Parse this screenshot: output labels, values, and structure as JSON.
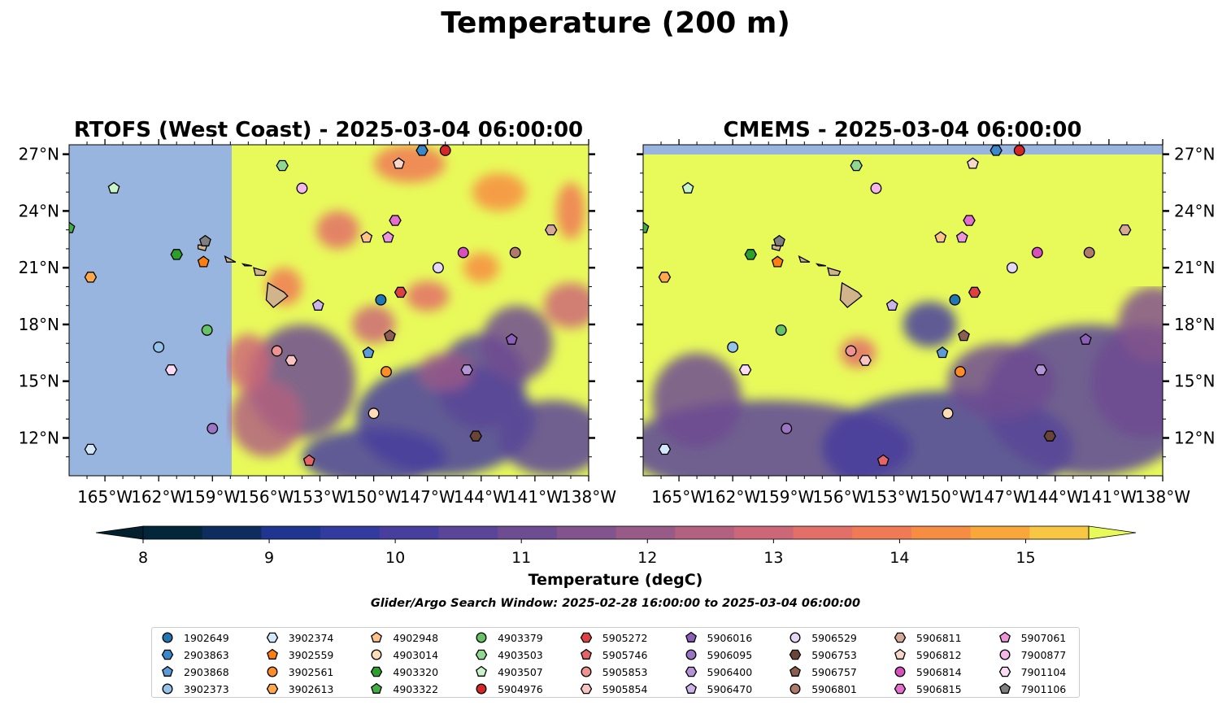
{
  "suptitle": "Temperature (200 m)",
  "chart_data": [
    {
      "type": "contour map",
      "title": "RTOFS (West Coast) - 2025-03-04 06:00:00",
      "xlim": [
        -167,
        -138
      ],
      "ylim": [
        10,
        27.5
      ],
      "xticks": [
        "165°W",
        "162°W",
        "159°W",
        "156°W",
        "153°W",
        "150°W",
        "147°W",
        "144°W",
        "141°W",
        "138°W"
      ],
      "yticks": [
        "27°N",
        "24°N",
        "21°N",
        "18°N",
        "15°N",
        "12°N"
      ],
      "ytick_side": "left"
    },
    {
      "type": "contour map",
      "title": "CMEMS - 2025-03-04 06:00:00",
      "xlim": [
        -167,
        -138
      ],
      "ylim": [
        10,
        27.5
      ],
      "xticks": [
        "165°W",
        "162°W",
        "159°W",
        "156°W",
        "153°W",
        "150°W",
        "147°W",
        "144°W",
        "141°W",
        "138°W"
      ],
      "yticks": [
        "27°N",
        "24°N",
        "21°N",
        "18°N",
        "15°N",
        "12°N"
      ],
      "ytick_side": "right"
    }
  ],
  "colorbar": {
    "label": "Temperature (degC)",
    "min": 8,
    "max": 15.5,
    "step": 0.5,
    "ticks": [
      "8",
      "9",
      "10",
      "11",
      "12",
      "13",
      "14",
      "15"
    ],
    "colors": [
      "#04263a",
      "#0e2d5e",
      "#1f3590",
      "#323b9e",
      "#483e9e",
      "#5a4598",
      "#6e4c92",
      "#82538d",
      "#985a87",
      "#b26180",
      "#cc6777",
      "#e36f69",
      "#f07a56",
      "#f78d42",
      "#f9a63b",
      "#f7c744"
    ],
    "over_color": "#e8fa5a",
    "under_color": "#04202f"
  },
  "search_window": "Glider/Argo Search Window: 2025-02-28 16:00:00 to 2025-03-04 06:00:00",
  "legend": [
    {
      "label": "1902649",
      "marker": "circle",
      "color": "#1f77b4"
    },
    {
      "label": "2903863",
      "marker": "hexagon",
      "color": "#3a87c9"
    },
    {
      "label": "2903868",
      "marker": "pentagon",
      "color": "#5a9bd8"
    },
    {
      "label": "3902373",
      "marker": "circle",
      "color": "#94c4ea"
    },
    {
      "label": "3902374",
      "marker": "hexagon",
      "color": "#d3e8fb"
    },
    {
      "label": "3902559",
      "marker": "pentagon",
      "color": "#ff7f0e"
    },
    {
      "label": "3902561",
      "marker": "circle",
      "color": "#ff8c26"
    },
    {
      "label": "3902613",
      "marker": "hexagon",
      "color": "#ffa84e"
    },
    {
      "label": "4902948",
      "marker": "pentagon",
      "color": "#ffc38a"
    },
    {
      "label": "4903014",
      "marker": "circle",
      "color": "#ffdcb8"
    },
    {
      "label": "4903320",
      "marker": "hexagon",
      "color": "#2ca02c"
    },
    {
      "label": "4903322",
      "marker": "pentagon",
      "color": "#43ae43"
    },
    {
      "label": "4903379",
      "marker": "circle",
      "color": "#66c266"
    },
    {
      "label": "4903503",
      "marker": "hexagon",
      "color": "#90d890"
    },
    {
      "label": "4903507",
      "marker": "pentagon",
      "color": "#c8f5c8"
    },
    {
      "label": "5904976",
      "marker": "circle",
      "color": "#d62728"
    },
    {
      "label": "5905272",
      "marker": "hexagon",
      "color": "#dd4141"
    },
    {
      "label": "5905746",
      "marker": "pentagon",
      "color": "#e46565"
    },
    {
      "label": "5905853",
      "marker": "circle",
      "color": "#ee9292"
    },
    {
      "label": "5905854",
      "marker": "hexagon",
      "color": "#f7c3c3"
    },
    {
      "label": "5906016",
      "marker": "pentagon",
      "color": "#8c5fb8"
    },
    {
      "label": "5906095",
      "marker": "circle",
      "color": "#9b74c4"
    },
    {
      "label": "5906400",
      "marker": "hexagon",
      "color": "#b494d6"
    },
    {
      "label": "5906470",
      "marker": "pentagon",
      "color": "#ccb3e8"
    },
    {
      "label": "5906529",
      "marker": "circle",
      "color": "#e6d7f7"
    },
    {
      "label": "5906753",
      "marker": "hexagon",
      "color": "#6b4438"
    },
    {
      "label": "5906757",
      "marker": "pentagon",
      "color": "#8c5e50"
    },
    {
      "label": "5906801",
      "marker": "circle",
      "color": "#b07a6a"
    },
    {
      "label": "5906811",
      "marker": "hexagon",
      "color": "#d6a898"
    },
    {
      "label": "5906812",
      "marker": "pentagon",
      "color": "#f7d7c9"
    },
    {
      "label": "5906814",
      "marker": "circle",
      "color": "#d84fbe"
    },
    {
      "label": "5906815",
      "marker": "hexagon",
      "color": "#e36ecd"
    },
    {
      "label": "5907061",
      "marker": "pentagon",
      "color": "#ec95db"
    },
    {
      "label": "7900877",
      "marker": "circle",
      "color": "#f4b7e8"
    },
    {
      "label": "7901104",
      "marker": "hexagon",
      "color": "#fbdcf4"
    },
    {
      "label": "7901106",
      "marker": "pentagon",
      "color": "#7f7f7f"
    }
  ],
  "floats": [
    {
      "id": "1902649",
      "lon": -149.6,
      "lat": 19.3
    },
    {
      "id": "2903863",
      "lon": -147.3,
      "lat": 27.2
    },
    {
      "id": "2903868",
      "lon": -150.3,
      "lat": 16.5
    },
    {
      "id": "3902373",
      "lon": -162.0,
      "lat": 16.8
    },
    {
      "id": "3902374",
      "lon": -165.8,
      "lat": 11.4
    },
    {
      "id": "3902559",
      "lon": -159.5,
      "lat": 21.3
    },
    {
      "id": "3902561",
      "lon": -149.3,
      "lat": 15.5
    },
    {
      "id": "3902613",
      "lon": -165.8,
      "lat": 20.5
    },
    {
      "id": "4902948",
      "lon": -150.4,
      "lat": 22.6
    },
    {
      "id": "4903014",
      "lon": -150.0,
      "lat": 13.3
    },
    {
      "id": "4903320",
      "lon": -161.0,
      "lat": 21.7
    },
    {
      "id": "4903322",
      "lon": -167.0,
      "lat": 23.1
    },
    {
      "id": "4903379",
      "lon": -159.3,
      "lat": 17.7
    },
    {
      "id": "4903503",
      "lon": -155.1,
      "lat": 26.4
    },
    {
      "id": "4903507",
      "lon": -164.5,
      "lat": 25.2
    },
    {
      "id": "5904976",
      "lon": -146.0,
      "lat": 27.2
    },
    {
      "id": "5905272",
      "lon": -148.5,
      "lat": 19.7
    },
    {
      "id": "5905746",
      "lon": -153.6,
      "lat": 10.8
    },
    {
      "id": "5905853",
      "lon": -155.4,
      "lat": 16.6
    },
    {
      "id": "5905854",
      "lon": -154.6,
      "lat": 16.1
    },
    {
      "id": "5906016",
      "lon": -142.3,
      "lat": 17.2
    },
    {
      "id": "5906095",
      "lon": -159.0,
      "lat": 12.5
    },
    {
      "id": "5906400",
      "lon": -144.8,
      "lat": 15.6
    },
    {
      "id": "5906470",
      "lon": -153.1,
      "lat": 19.0
    },
    {
      "id": "5906529",
      "lon": -146.4,
      "lat": 21.0
    },
    {
      "id": "5906753",
      "lon": -144.3,
      "lat": 12.1
    },
    {
      "id": "5906757",
      "lon": -149.1,
      "lat": 17.4
    },
    {
      "id": "5906801",
      "lon": -142.1,
      "lat": 21.8
    },
    {
      "id": "5906811",
      "lon": -140.1,
      "lat": 23.0
    },
    {
      "id": "5906812",
      "lon": -148.6,
      "lat": 26.5
    },
    {
      "id": "5906814",
      "lon": -145.0,
      "lat": 21.8
    },
    {
      "id": "5906815",
      "lon": -148.8,
      "lat": 23.5
    },
    {
      "id": "5907061",
      "lon": -149.2,
      "lat": 22.6
    },
    {
      "id": "7900877",
      "lon": -154.0,
      "lat": 25.2
    },
    {
      "id": "7901104",
      "lon": -161.3,
      "lat": 15.6
    },
    {
      "id": "7901106",
      "lon": -159.4,
      "lat": 22.4
    }
  ]
}
